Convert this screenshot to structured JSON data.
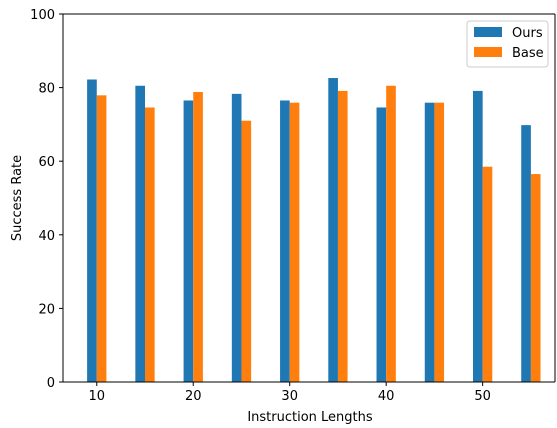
{
  "chart_data": {
    "type": "bar",
    "x": [
      10,
      15,
      20,
      25,
      30,
      35,
      40,
      45,
      50,
      55
    ],
    "xticks": [
      "10",
      "20",
      "30",
      "40",
      "50"
    ],
    "xtick_values": [
      10,
      20,
      30,
      40,
      50
    ],
    "yticks": [
      "0",
      "20",
      "40",
      "60",
      "80",
      "100"
    ],
    "ytick_values": [
      0,
      20,
      40,
      60,
      80,
      100
    ],
    "xlim": [
      6.5,
      57.5
    ],
    "ylim": [
      0,
      100
    ],
    "xlabel": "Instruction Lengths",
    "ylabel": "Success Rate",
    "grid": false,
    "legend_position": "top-right",
    "series": [
      {
        "name": "Ours",
        "color": "#1f77b4",
        "values": [
          82.2,
          80.5,
          76.5,
          78.3,
          76.5,
          82.6,
          74.6,
          75.9,
          79.1,
          69.8
        ]
      },
      {
        "name": "Base",
        "color": "#ff7f0e",
        "values": [
          77.9,
          74.6,
          78.8,
          71.0,
          75.9,
          79.1,
          80.5,
          75.9,
          58.5,
          56.5
        ]
      }
    ]
  }
}
